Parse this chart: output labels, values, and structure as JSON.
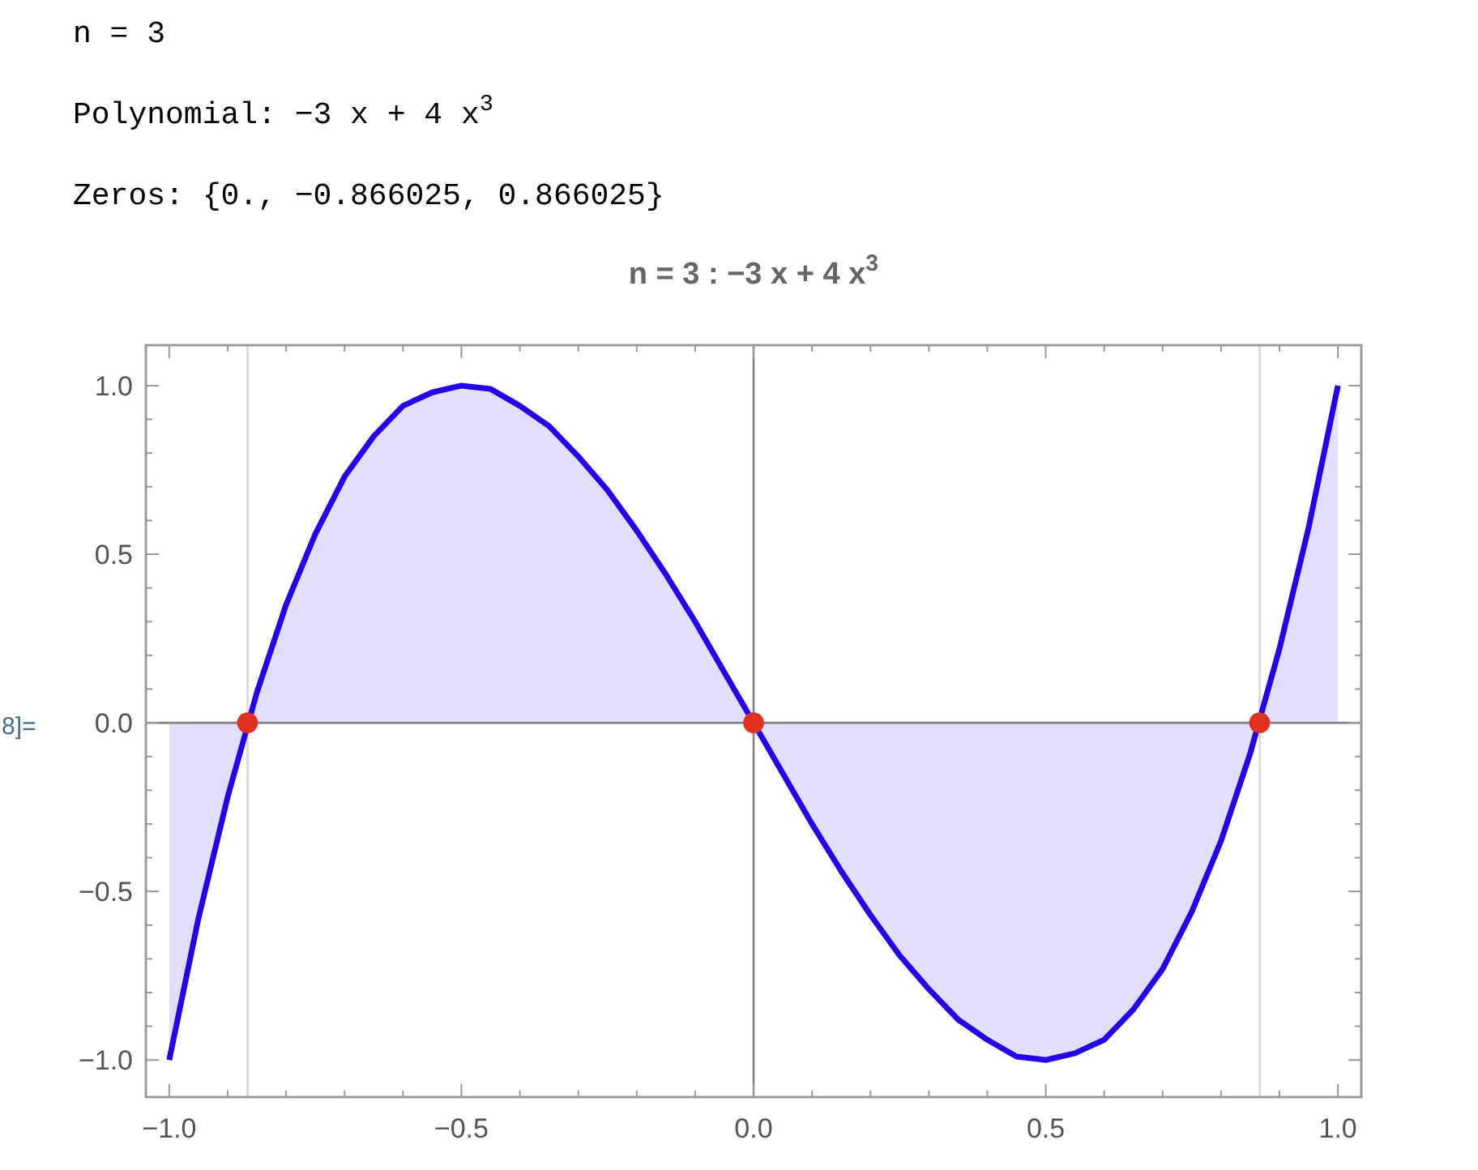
{
  "chart_data": {
    "type": "area",
    "title": "n = 3 : −3 x + 4 x$^{3}$",
    "annotations": [
      "n = 3",
      "Polynomial: −3 x + 4 x$^{3}$",
      "Zeros: {0., −0.866025, 0.866025}",
      "8]="
    ],
    "x": [
      -1,
      -0.95,
      -0.9,
      -0.85,
      -0.8,
      -0.75,
      -0.7,
      -0.65,
      -0.6,
      -0.55,
      -0.5,
      -0.45,
      -0.4,
      -0.35,
      -0.3,
      -0.25,
      -0.2,
      -0.15,
      -0.1,
      -0.05,
      0,
      0.05,
      0.1,
      0.15,
      0.2,
      0.25,
      0.3,
      0.35,
      0.4,
      0.45,
      0.5,
      0.55,
      0.6,
      0.65,
      0.7,
      0.75,
      0.8,
      0.85,
      0.9,
      0.95,
      1
    ],
    "series": [
      {
        "color": "#2200ee",
        "values": [
          -1,
          -0.58,
          -0.22,
          0.09,
          0.35,
          0.56,
          0.73,
          0.85,
          0.94,
          0.98,
          1,
          0.99,
          0.94,
          0.88,
          0.79,
          0.69,
          0.57,
          0.44,
          0.3,
          0.15,
          0,
          -0.15,
          -0.3,
          -0.44,
          -0.57,
          -0.69,
          -0.79,
          -0.88,
          -0.94,
          -0.99,
          -1,
          -0.98,
          -0.94,
          -0.85,
          -0.73,
          -0.56,
          -0.35,
          -0.09,
          0.22,
          0.58,
          1
        ]
      },
      {
        "type": "scatter",
        "color": "#e03020",
        "marker": "circle",
        "x": [
          -0.866,
          0,
          0.866
        ],
        "values": [
          0,
          0,
          0
        ]
      }
    ],
    "xlim": [
      -1.04,
      1.04
    ],
    "ylim": [
      -1.11,
      1.12
    ],
    "xticks": [
      {
        "value": -1,
        "label": "−1.0"
      },
      {
        "value": -0.9,
        "label": null
      },
      {
        "value": -0.8,
        "label": null
      },
      {
        "value": -0.7,
        "label": null
      },
      {
        "value": -0.6,
        "label": null
      },
      {
        "value": -0.5,
        "label": "−0.5"
      },
      {
        "value": -0.4,
        "label": null
      },
      {
        "value": -0.3,
        "label": null
      },
      {
        "value": -0.2,
        "label": null
      },
      {
        "value": -0.1,
        "label": null
      },
      {
        "value": 0,
        "label": "0.0"
      },
      {
        "value": 0.1,
        "label": null
      },
      {
        "value": 0.2,
        "label": null
      },
      {
        "value": 0.3,
        "label": null
      },
      {
        "value": 0.4,
        "label": null
      },
      {
        "value": 0.5,
        "label": "0.5"
      },
      {
        "value": 0.6,
        "label": null
      },
      {
        "value": 0.7,
        "label": null
      },
      {
        "value": 0.8,
        "label": null
      },
      {
        "value": 0.9,
        "label": null
      },
      {
        "value": 1,
        "label": "1.0"
      }
    ],
    "yticks": [
      {
        "value": -1,
        "label": "−1.0"
      },
      {
        "value": -0.9,
        "label": null
      },
      {
        "value": -0.8,
        "label": null
      },
      {
        "value": -0.7,
        "label": null
      },
      {
        "value": -0.6,
        "label": null
      },
      {
        "value": -0.5,
        "label": "−0.5"
      },
      {
        "value": -0.4,
        "label": null
      },
      {
        "value": -0.3,
        "label": null
      },
      {
        "value": -0.2,
        "label": null
      },
      {
        "value": -0.1,
        "label": null
      },
      {
        "value": 0,
        "label": "0.0"
      },
      {
        "value": 0.1,
        "label": null
      },
      {
        "value": 0.2,
        "label": null
      },
      {
        "value": 0.3,
        "label": null
      },
      {
        "value": 0.4,
        "label": null
      },
      {
        "value": 0.5,
        "label": "0.5"
      },
      {
        "value": 0.6,
        "label": null
      },
      {
        "value": 0.7,
        "label": null
      },
      {
        "value": 0.8,
        "label": null
      },
      {
        "value": 0.9,
        "label": null
      },
      {
        "value": 1,
        "label": "1.0"
      }
    ],
    "ref_lines": [
      {
        "axis": "x",
        "value": -0.866,
        "color": "#d8d8d8"
      },
      {
        "axis": "x",
        "value": 0.866,
        "color": "#d8d8d8"
      },
      {
        "axis": "x",
        "value": 0,
        "color": "#808080"
      },
      {
        "axis": "y",
        "value": 0,
        "color": "#808080"
      }
    ],
    "grid": false
  }
}
